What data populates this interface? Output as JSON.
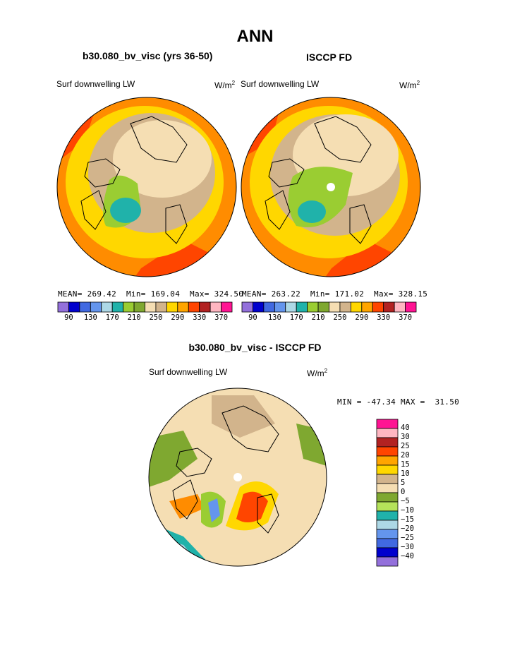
{
  "page_title": "ANN",
  "chart_data": [
    {
      "type": "heatmap",
      "projection": "polar-stereographic",
      "subtitle": "b30.080_bv_visc (yrs 36-50)",
      "variable": "Surf downwelling LW",
      "units_base": "W/m",
      "units_exp": "2",
      "stats": {
        "mean_label": "MEAN=",
        "mean": "269.42",
        "min_label": "Min=",
        "min": "169.04",
        "max_label": "Max=",
        "max": "324.50"
      },
      "colorbar": {
        "orientation": "horizontal",
        "colors": [
          "#9370db",
          "#0000cd",
          "#4169e1",
          "#6495ed",
          "#add8e6",
          "#20b2aa",
          "#9acd32",
          "#7fa830",
          "#f5deb3",
          "#d2b48c",
          "#ffd700",
          "#ffa500",
          "#ff4500",
          "#b22222",
          "#ffb6c1",
          "#ff1493"
        ],
        "tick_labels": [
          "90",
          "130",
          "170",
          "210",
          "250",
          "290",
          "330",
          "370"
        ]
      }
    },
    {
      "type": "heatmap",
      "projection": "polar-stereographic",
      "subtitle": "ISCCP FD",
      "variable": "Surf downwelling LW",
      "units_base": "W/m",
      "units_exp": "2",
      "stats": {
        "mean_label": "MEAN=",
        "mean": "263.22",
        "min_label": "Min=",
        "min": "171.02",
        "max_label": "Max=",
        "max": "328.15"
      },
      "colorbar": {
        "orientation": "horizontal",
        "colors": [
          "#9370db",
          "#0000cd",
          "#4169e1",
          "#6495ed",
          "#add8e6",
          "#20b2aa",
          "#9acd32",
          "#7fa830",
          "#f5deb3",
          "#d2b48c",
          "#ffd700",
          "#ffa500",
          "#ff4500",
          "#b22222",
          "#ffb6c1",
          "#ff1493"
        ],
        "tick_labels": [
          "90",
          "130",
          "170",
          "210",
          "250",
          "290",
          "330",
          "370"
        ]
      }
    },
    {
      "type": "heatmap",
      "projection": "polar-stereographic",
      "subtitle": "b30.080_bv_visc - ISCCP FD",
      "variable": "Surf downwelling LW",
      "units_base": "W/m",
      "units_exp": "2",
      "stats_text": "MIN = -47.34 MAX =  31.50",
      "colorbar": {
        "orientation": "vertical",
        "colors": [
          "#ff1493",
          "#ffb6c1",
          "#b22222",
          "#ff4500",
          "#ffa500",
          "#ffd700",
          "#d2b48c",
          "#f5deb3",
          "#7fa830",
          "#b5e35a",
          "#20b2aa",
          "#add8e6",
          "#6495ed",
          "#4169e1",
          "#0000cd",
          "#9370db"
        ],
        "tick_labels": [
          "40",
          "30",
          "25",
          "20",
          "15",
          "10",
          "5",
          "0",
          "−5",
          "−10",
          "−15",
          "−20",
          "−25",
          "−30",
          "−40"
        ]
      }
    }
  ]
}
